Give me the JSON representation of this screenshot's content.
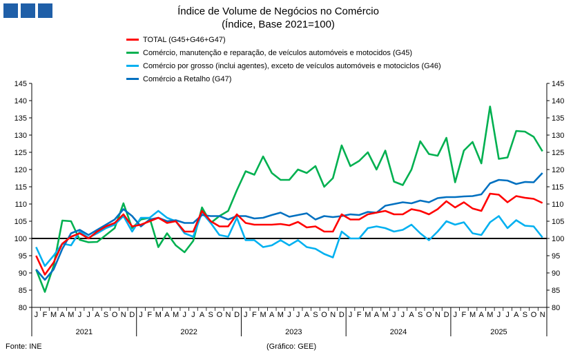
{
  "title": "Índice de Volume de Negócios no Comércio",
  "subtitle": "(Índice, Base 2021=100)",
  "footer_source": "Fonte: INE",
  "footer_credit": "(Gráfico: GEE)",
  "chart_data": {
    "type": "line",
    "title": "Índice de Volume de Negócios no Comércio",
    "subtitle": "(Índice, Base 2021=100)",
    "ylim": [
      80,
      145
    ],
    "yticks": [
      80,
      85,
      90,
      95,
      100,
      105,
      110,
      115,
      120,
      125,
      130,
      135,
      140,
      145
    ],
    "reference_line": 100,
    "years": [
      "2021",
      "2022",
      "2023",
      "2024",
      "2025"
    ],
    "month_labels": [
      "J",
      "F",
      "M",
      "A",
      "M",
      "J",
      "J",
      "A",
      "S",
      "O",
      "N",
      "D",
      "J",
      "F",
      "M",
      "A",
      "M",
      "J",
      "J",
      "A",
      "S",
      "O",
      "N",
      "D",
      "J",
      "F",
      "M",
      "A",
      "M",
      "J",
      "J",
      "A",
      "S",
      "O",
      "N",
      "D",
      "J",
      "F",
      "M",
      "A",
      "M",
      "J",
      "J",
      "A",
      "S",
      "O",
      "N",
      "D",
      "J",
      "F",
      "M",
      "A",
      "M",
      "J",
      "J",
      "A",
      "S",
      "O",
      "N"
    ],
    "legend_position": "top-left",
    "series": [
      {
        "name": "TOTAL (G45+G46+G47)",
        "color": "#ff0000",
        "values": [
          95,
          89.5,
          93,
          98.5,
          100.5,
          101.5,
          100,
          102,
          103.5,
          104.5,
          107,
          103.5,
          104,
          105,
          106,
          104.5,
          105,
          102,
          102,
          108,
          105,
          103.5,
          103.5,
          107,
          104.5,
          104,
          104,
          104,
          104.2,
          103.8,
          104.8,
          103.2,
          103.5,
          102,
          102,
          107,
          105.5,
          105.5,
          107,
          107.5,
          108,
          107,
          107,
          108.5,
          108,
          107,
          108.5,
          110.8,
          109,
          110.5,
          108.7,
          108,
          113,
          112.7,
          110.5,
          112.3,
          111.8,
          111.5,
          110.3
        ]
      },
      {
        "name": "Comércio, manutenção e reparação, de veículos automóveis e motocidos (G45)",
        "color": "#00b050",
        "values": [
          91,
          84.5,
          92,
          105.2,
          105,
          99.6,
          98.9,
          99,
          101,
          103,
          110.2,
          103,
          105.5,
          106,
          97.5,
          101.5,
          98,
          96,
          99.3,
          109,
          104.5,
          106.5,
          108,
          114,
          119.5,
          118.5,
          123.8,
          119,
          117,
          117,
          120,
          119,
          121,
          115,
          117.5,
          127,
          121,
          122.5,
          125,
          120,
          125.5,
          116.5,
          115.5,
          120,
          128.2,
          124.5,
          124,
          129.2,
          116.3,
          125.5,
          128,
          121.8,
          138.3,
          123.1,
          123.5,
          131.2,
          131,
          129.5,
          125.3
        ]
      },
      {
        "name": "Comércio por grosso (inclui agentes), exceto de veículos automóveis e motociclos (G46)",
        "color": "#00b0f0",
        "values": [
          97.5,
          92,
          95,
          98.5,
          98,
          102,
          100.2,
          101.5,
          103,
          104,
          106.5,
          102,
          106,
          106,
          108,
          106,
          105,
          101.5,
          100.5,
          107.5,
          104.5,
          101,
          100.5,
          106,
          99.5,
          99.5,
          97.5,
          98,
          99.5,
          98,
          99.5,
          97.5,
          97,
          95.5,
          94.5,
          102,
          100,
          100,
          103,
          103.5,
          103,
          102,
          102.5,
          104,
          101.5,
          99.5,
          102,
          105,
          104,
          104.7,
          101.5,
          101,
          104.7,
          106.5,
          103,
          105.3,
          103.7,
          103.5,
          100.3
        ]
      },
      {
        "name": "Comércio a Retalho (G47)",
        "color": "#0070c0",
        "values": [
          91,
          88,
          91,
          97,
          101.5,
          102.5,
          101,
          102.5,
          104,
          105.5,
          108.5,
          106.5,
          103.5,
          105.5,
          106,
          105,
          105.3,
          104.5,
          104.5,
          106.8,
          106.5,
          106.5,
          105.5,
          106.5,
          106.5,
          105.8,
          106,
          106.8,
          107.5,
          106.3,
          106.8,
          107.3,
          105.5,
          106.5,
          106.2,
          106.5,
          107,
          106.8,
          107.7,
          107.5,
          109.5,
          110,
          110.5,
          110.2,
          111,
          110.5,
          111.7,
          112,
          112,
          112.2,
          112.3,
          112.8,
          116,
          117,
          116.8,
          115.8,
          116.4,
          116.3,
          119
        ]
      }
    ]
  }
}
